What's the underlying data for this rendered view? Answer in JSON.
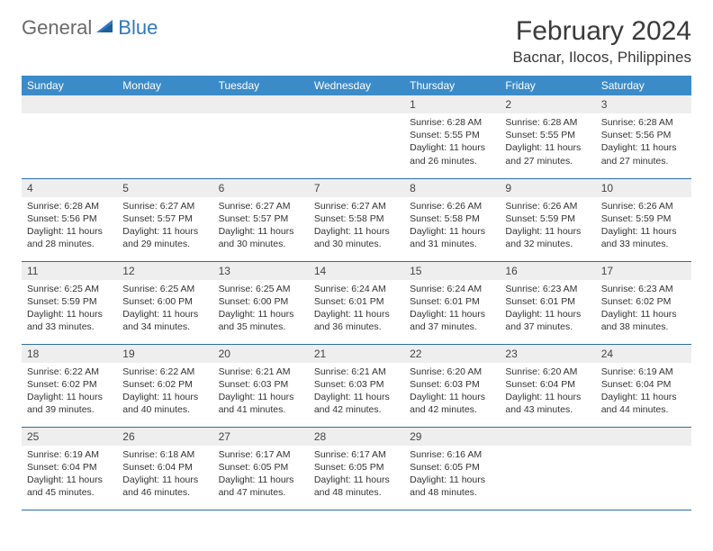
{
  "brand": {
    "word1": "General",
    "word2": "Blue"
  },
  "title": "February 2024",
  "location": "Bacnar, Ilocos, Philippines",
  "colors": {
    "header_bg": "#3b8bc9",
    "header_text": "#ffffff",
    "row_divider": "#2d6da3",
    "daynum_bg": "#eeeeee",
    "logo_gray": "#6a6a6a",
    "logo_blue": "#2f7abf"
  },
  "weekdays": [
    "Sunday",
    "Monday",
    "Tuesday",
    "Wednesday",
    "Thursday",
    "Friday",
    "Saturday"
  ],
  "weeks": [
    [
      null,
      null,
      null,
      null,
      {
        "n": "1",
        "sr": "6:28 AM",
        "ss": "5:55 PM",
        "dl": "11 hours and 26 minutes."
      },
      {
        "n": "2",
        "sr": "6:28 AM",
        "ss": "5:55 PM",
        "dl": "11 hours and 27 minutes."
      },
      {
        "n": "3",
        "sr": "6:28 AM",
        "ss": "5:56 PM",
        "dl": "11 hours and 27 minutes."
      }
    ],
    [
      {
        "n": "4",
        "sr": "6:28 AM",
        "ss": "5:56 PM",
        "dl": "11 hours and 28 minutes."
      },
      {
        "n": "5",
        "sr": "6:27 AM",
        "ss": "5:57 PM",
        "dl": "11 hours and 29 minutes."
      },
      {
        "n": "6",
        "sr": "6:27 AM",
        "ss": "5:57 PM",
        "dl": "11 hours and 30 minutes."
      },
      {
        "n": "7",
        "sr": "6:27 AM",
        "ss": "5:58 PM",
        "dl": "11 hours and 30 minutes."
      },
      {
        "n": "8",
        "sr": "6:26 AM",
        "ss": "5:58 PM",
        "dl": "11 hours and 31 minutes."
      },
      {
        "n": "9",
        "sr": "6:26 AM",
        "ss": "5:59 PM",
        "dl": "11 hours and 32 minutes."
      },
      {
        "n": "10",
        "sr": "6:26 AM",
        "ss": "5:59 PM",
        "dl": "11 hours and 33 minutes."
      }
    ],
    [
      {
        "n": "11",
        "sr": "6:25 AM",
        "ss": "5:59 PM",
        "dl": "11 hours and 33 minutes."
      },
      {
        "n": "12",
        "sr": "6:25 AM",
        "ss": "6:00 PM",
        "dl": "11 hours and 34 minutes."
      },
      {
        "n": "13",
        "sr": "6:25 AM",
        "ss": "6:00 PM",
        "dl": "11 hours and 35 minutes."
      },
      {
        "n": "14",
        "sr": "6:24 AM",
        "ss": "6:01 PM",
        "dl": "11 hours and 36 minutes."
      },
      {
        "n": "15",
        "sr": "6:24 AM",
        "ss": "6:01 PM",
        "dl": "11 hours and 37 minutes."
      },
      {
        "n": "16",
        "sr": "6:23 AM",
        "ss": "6:01 PM",
        "dl": "11 hours and 37 minutes."
      },
      {
        "n": "17",
        "sr": "6:23 AM",
        "ss": "6:02 PM",
        "dl": "11 hours and 38 minutes."
      }
    ],
    [
      {
        "n": "18",
        "sr": "6:22 AM",
        "ss": "6:02 PM",
        "dl": "11 hours and 39 minutes."
      },
      {
        "n": "19",
        "sr": "6:22 AM",
        "ss": "6:02 PM",
        "dl": "11 hours and 40 minutes."
      },
      {
        "n": "20",
        "sr": "6:21 AM",
        "ss": "6:03 PM",
        "dl": "11 hours and 41 minutes."
      },
      {
        "n": "21",
        "sr": "6:21 AM",
        "ss": "6:03 PM",
        "dl": "11 hours and 42 minutes."
      },
      {
        "n": "22",
        "sr": "6:20 AM",
        "ss": "6:03 PM",
        "dl": "11 hours and 42 minutes."
      },
      {
        "n": "23",
        "sr": "6:20 AM",
        "ss": "6:04 PM",
        "dl": "11 hours and 43 minutes."
      },
      {
        "n": "24",
        "sr": "6:19 AM",
        "ss": "6:04 PM",
        "dl": "11 hours and 44 minutes."
      }
    ],
    [
      {
        "n": "25",
        "sr": "6:19 AM",
        "ss": "6:04 PM",
        "dl": "11 hours and 45 minutes."
      },
      {
        "n": "26",
        "sr": "6:18 AM",
        "ss": "6:04 PM",
        "dl": "11 hours and 46 minutes."
      },
      {
        "n": "27",
        "sr": "6:17 AM",
        "ss": "6:05 PM",
        "dl": "11 hours and 47 minutes."
      },
      {
        "n": "28",
        "sr": "6:17 AM",
        "ss": "6:05 PM",
        "dl": "11 hours and 48 minutes."
      },
      {
        "n": "29",
        "sr": "6:16 AM",
        "ss": "6:05 PM",
        "dl": "11 hours and 48 minutes."
      },
      null,
      null
    ]
  ],
  "labels": {
    "sunrise": "Sunrise:",
    "sunset": "Sunset:",
    "daylight": "Daylight:"
  }
}
